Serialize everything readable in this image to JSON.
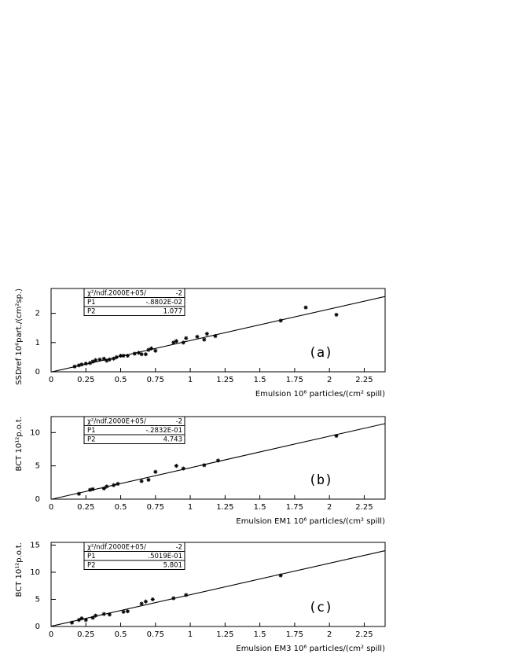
{
  "chart_data": [
    {
      "type": "scatter",
      "label": "(a)",
      "ylabel": "SSDref 10⁶part./(cm²sp.)",
      "xlabel": "Emulsion  10⁶ particles/(cm² spill)",
      "x": [
        0.17,
        0.2,
        0.22,
        0.25,
        0.28,
        0.3,
        0.32,
        0.35,
        0.38,
        0.4,
        0.42,
        0.45,
        0.47,
        0.5,
        0.52,
        0.55,
        0.6,
        0.63,
        0.65,
        0.68,
        0.7,
        0.72,
        0.75,
        0.88,
        0.9,
        0.95,
        0.97,
        1.05,
        1.1,
        1.12,
        1.18,
        1.65,
        1.83,
        2.05
      ],
      "values": [
        0.18,
        0.22,
        0.25,
        0.28,
        0.3,
        0.35,
        0.4,
        0.42,
        0.45,
        0.38,
        0.42,
        0.45,
        0.5,
        0.55,
        0.55,
        0.55,
        0.62,
        0.65,
        0.6,
        0.6,
        0.75,
        0.8,
        0.72,
        1.0,
        1.05,
        1.0,
        1.15,
        1.2,
        1.1,
        1.3,
        1.22,
        1.75,
        2.2,
        1.95
      ],
      "xlim": [
        0,
        2.4
      ],
      "ylim": [
        0,
        2.85
      ],
      "xticks": [
        0,
        0.25,
        0.5,
        0.75,
        1,
        1.25,
        1.5,
        1.75,
        2,
        2.25
      ],
      "yticks": [
        0,
        1,
        2
      ],
      "fit": {
        "chi2": "χ²/ndf.2000E+05/",
        "ndf": "-2",
        "p1_name": "P1",
        "p1": {
          "value": -0.008802,
          "label": "-.8802E-02"
        },
        "p2_name": "P2",
        "p2": 1.077
      }
    },
    {
      "type": "scatter",
      "label": "(b)",
      "ylabel": "BCT  10¹²p.o.t.",
      "xlabel": "Emulsion EM1  10⁶ particles/(cm² spill)",
      "x": [
        0.2,
        0.28,
        0.3,
        0.38,
        0.4,
        0.45,
        0.48,
        0.65,
        0.7,
        0.75,
        0.9,
        0.95,
        1.1,
        1.2,
        2.05
      ],
      "values": [
        0.8,
        1.4,
        1.5,
        1.6,
        1.9,
        2.1,
        2.3,
        2.7,
        2.9,
        4.1,
        5.0,
        4.6,
        5.1,
        5.8,
        9.5
      ],
      "xlim": [
        0,
        2.4
      ],
      "ylim": [
        0,
        12.4
      ],
      "xticks": [
        0,
        0.25,
        0.5,
        0.75,
        1,
        1.25,
        1.5,
        1.75,
        2,
        2.25
      ],
      "yticks": [
        0,
        5,
        10
      ],
      "fit": {
        "chi2": "χ²/ndf.2000E+05/",
        "ndf": "-2",
        "p1_name": "P1",
        "p1": {
          "value": -0.02832,
          "label": "-.2832E-01"
        },
        "p2_name": "P2",
        "p2": 4.743
      }
    },
    {
      "type": "scatter",
      "label": "(c)",
      "ylabel": "BCT  10¹²p.o.t.",
      "xlabel": "Emulsion EM3  10⁶ particles/(cm² spill)",
      "x": [
        0.15,
        0.2,
        0.22,
        0.25,
        0.3,
        0.32,
        0.38,
        0.42,
        0.52,
        0.55,
        0.65,
        0.68,
        0.73,
        0.88,
        0.97,
        1.65
      ],
      "values": [
        0.7,
        1.2,
        1.5,
        1.2,
        1.6,
        2.0,
        2.3,
        2.2,
        2.7,
        2.8,
        4.2,
        4.6,
        5.0,
        5.2,
        5.8,
        9.4
      ],
      "xlim": [
        0,
        2.4
      ],
      "ylim": [
        0,
        15.5
      ],
      "xticks": [
        0,
        0.25,
        0.5,
        0.75,
        1,
        1.25,
        1.5,
        1.75,
        2,
        2.25
      ],
      "yticks": [
        0,
        5,
        10,
        15
      ],
      "fit": {
        "chi2": "χ²/ndf.2000E+05/",
        "ndf": "-2",
        "p1_name": "P1",
        "p1": {
          "value": 0.05019,
          "label": ".5019E-01"
        },
        "p2_name": "P2",
        "p2": 5.801
      }
    }
  ]
}
